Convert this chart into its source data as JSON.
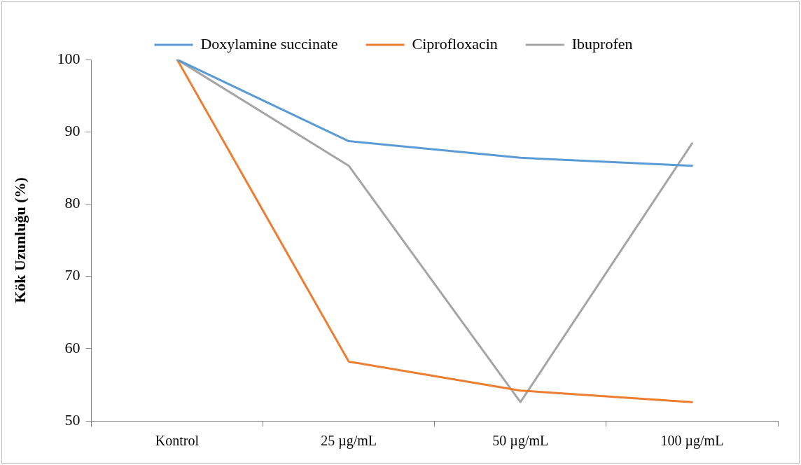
{
  "chart_data": {
    "type": "line",
    "ylabel": "Kök Uzunluğu (%)",
    "categories": [
      "Kontrol",
      "25 µg/mL",
      "50 µg/mL",
      "100 µg/mL"
    ],
    "series": [
      {
        "name": "Doxylamine succinate",
        "color": "#5b9bd5",
        "values": [
          100,
          88.7,
          86.4,
          85.3
        ]
      },
      {
        "name": "Ciprofloxacin",
        "color": "#ed7d31",
        "values": [
          100,
          58.2,
          54.2,
          52.6
        ]
      },
      {
        "name": "Ibuprofen",
        "color": "#a5a5a5",
        "values": [
          100,
          85.3,
          52.6,
          88.4
        ]
      }
    ],
    "ylim": [
      50,
      100
    ],
    "yticks": [
      50,
      60,
      70,
      80,
      90,
      100
    ],
    "grid": false,
    "legend": "top",
    "marker": "none",
    "line_style": "solid"
  }
}
